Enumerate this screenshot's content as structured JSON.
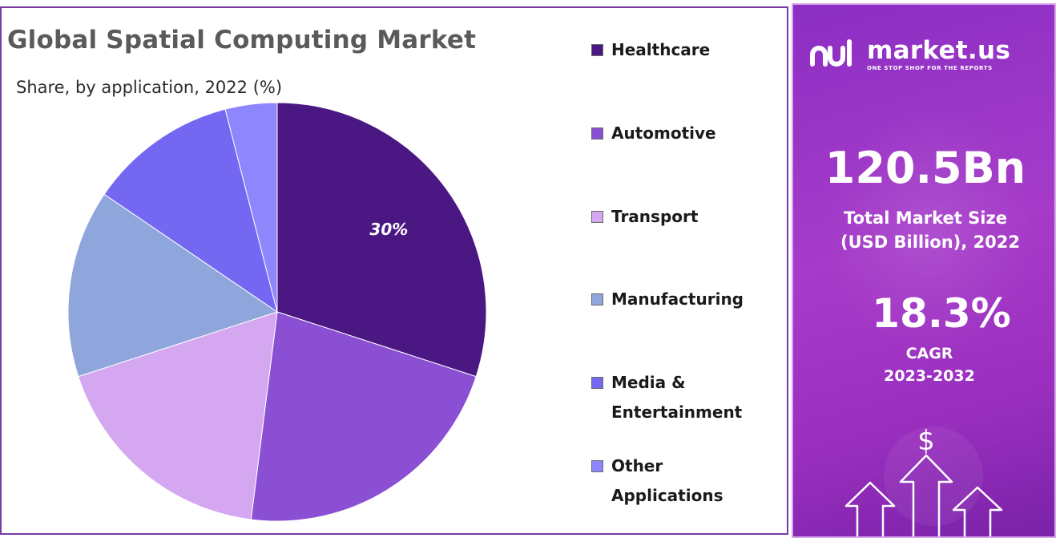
{
  "chart_data": {
    "type": "pie",
    "title": "Global Spatial Computing Market",
    "subtitle": "Share, by application, 2022 (%)",
    "slices": [
      {
        "name": "Healthcare",
        "value": 30,
        "color": "#4b1782",
        "label": "30%"
      },
      {
        "name": "Automotive",
        "value": 22,
        "color": "#8a4fd2"
      },
      {
        "name": "Transport",
        "value": 18,
        "color": "#d4a7f0"
      },
      {
        "name": "Manufacturing",
        "value": 14.5,
        "color": "#8ea6dc"
      },
      {
        "name": "Media & Entertainment",
        "value": 11.5,
        "color": "#7468f2"
      },
      {
        "name": "Other Applications",
        "value": 4,
        "color": "#8e86fc"
      }
    ],
    "legend_placement": "right"
  },
  "panel": {
    "brand": "market.us",
    "tagline": "ONE STOP SHOP FOR THE REPORTS",
    "market_size": "120.5Bn",
    "market_size_caption_1": "Total Market Size",
    "market_size_caption_2": "(USD Billion), 2022",
    "cagr": "18.3%",
    "cagr_caption_1": "CAGR",
    "cagr_caption_2": "2023-2032",
    "currency_symbol": "$"
  }
}
